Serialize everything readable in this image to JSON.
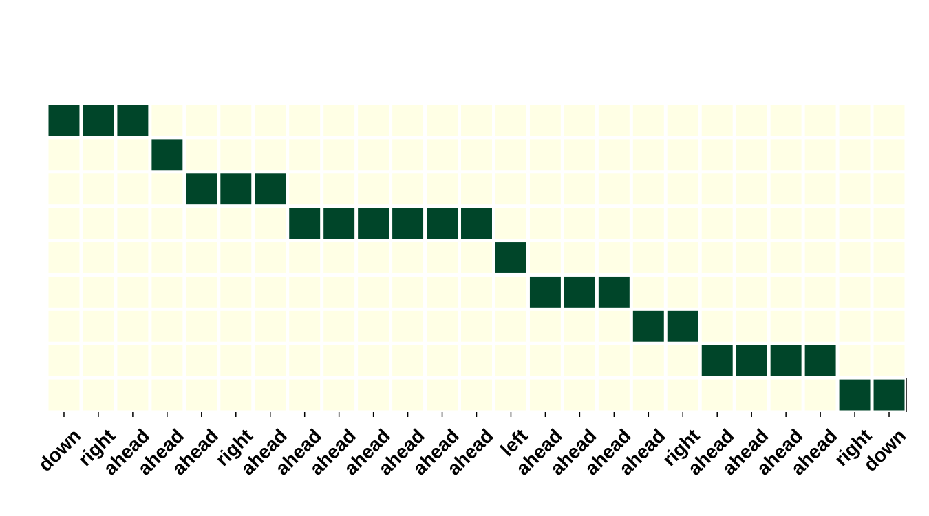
{
  "chart_data": {
    "type": "heatmap",
    "title": "",
    "xlabel": "",
    "ylabel": "",
    "x_tick_labels": [
      "down",
      "right",
      "ahead",
      "ahead",
      "ahead",
      "right",
      "ahead",
      "ahead",
      "ahead",
      "ahead",
      "ahead",
      "ahead",
      "ahead",
      "left",
      "ahead",
      "ahead",
      "ahead",
      "ahead",
      "right",
      "ahead",
      "ahead",
      "ahead",
      "ahead",
      "right",
      "down"
    ],
    "y_tick_labels": [],
    "values": [
      [
        1,
        1,
        1,
        0,
        0,
        0,
        0,
        0,
        0,
        0,
        0,
        0,
        0,
        0,
        0,
        0,
        0,
        0,
        0,
        0,
        0,
        0,
        0,
        0,
        0
      ],
      [
        0,
        0,
        0,
        1,
        0,
        0,
        0,
        0,
        0,
        0,
        0,
        0,
        0,
        0,
        0,
        0,
        0,
        0,
        0,
        0,
        0,
        0,
        0,
        0,
        0
      ],
      [
        0,
        0,
        0,
        0,
        1,
        1,
        1,
        0,
        0,
        0,
        0,
        0,
        0,
        0,
        0,
        0,
        0,
        0,
        0,
        0,
        0,
        0,
        0,
        0,
        0
      ],
      [
        0,
        0,
        0,
        0,
        0,
        0,
        0,
        1,
        1,
        1,
        1,
        1,
        1,
        0,
        0,
        0,
        0,
        0,
        0,
        0,
        0,
        0,
        0,
        0,
        0
      ],
      [
        0,
        0,
        0,
        0,
        0,
        0,
        0,
        0,
        0,
        0,
        0,
        0,
        0,
        1,
        0,
        0,
        0,
        0,
        0,
        0,
        0,
        0,
        0,
        0,
        0
      ],
      [
        0,
        0,
        0,
        0,
        0,
        0,
        0,
        0,
        0,
        0,
        0,
        0,
        0,
        0,
        1,
        1,
        1,
        0,
        0,
        0,
        0,
        0,
        0,
        0,
        0
      ],
      [
        0,
        0,
        0,
        0,
        0,
        0,
        0,
        0,
        0,
        0,
        0,
        0,
        0,
        0,
        0,
        0,
        0,
        1,
        1,
        0,
        0,
        0,
        0,
        0,
        0
      ],
      [
        0,
        0,
        0,
        0,
        0,
        0,
        0,
        0,
        0,
        0,
        0,
        0,
        0,
        0,
        0,
        0,
        0,
        0,
        0,
        1,
        1,
        1,
        1,
        0,
        0
      ],
      [
        0,
        0,
        0,
        0,
        0,
        0,
        0,
        0,
        0,
        0,
        0,
        0,
        0,
        0,
        0,
        0,
        0,
        0,
        0,
        0,
        0,
        0,
        0,
        1,
        1
      ]
    ],
    "value_range": [
      0,
      1
    ],
    "colormap": {
      "low": "#ffffe5",
      "high": "#004529"
    },
    "cell_separator_color": "#ffffff",
    "grid": false,
    "legend": "none"
  }
}
